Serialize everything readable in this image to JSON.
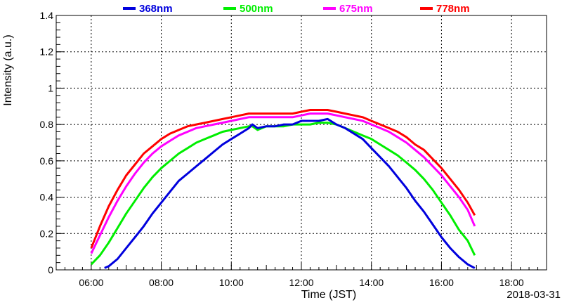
{
  "chart_data": {
    "type": "line",
    "title": "",
    "xlabel": "Time (JST)",
    "ylabel": "Intensity (a.u.)",
    "date_label": "2018-03-31",
    "xlim": [
      5.0,
      19.0
    ],
    "ylim": [
      0,
      1.4
    ],
    "x_ticks": [
      6,
      8,
      10,
      12,
      14,
      16,
      18
    ],
    "x_tick_labels": [
      "06:00",
      "08:00",
      "10:00",
      "12:00",
      "14:00",
      "16:00",
      "18:00"
    ],
    "y_ticks": [
      0,
      0.2,
      0.4,
      0.6,
      0.8,
      1,
      1.2,
      1.4
    ],
    "y_tick_labels": [
      "0",
      "0.2",
      "0.4",
      "0.6",
      "0.8",
      "1",
      "1.2",
      "1.4"
    ],
    "grid": true,
    "legend_position": "top",
    "series": [
      {
        "name": "368nm",
        "color": "#0000dd",
        "x": [
          6.38,
          6.5,
          6.75,
          7.0,
          7.25,
          7.5,
          7.75,
          8.0,
          8.25,
          8.5,
          8.75,
          9.0,
          9.25,
          9.5,
          9.75,
          10.0,
          10.25,
          10.5,
          10.6,
          10.75,
          11.0,
          11.25,
          11.5,
          11.75,
          12.0,
          12.25,
          12.5,
          12.75,
          13.0,
          13.25,
          13.5,
          13.75,
          14.0,
          14.25,
          14.5,
          14.75,
          15.0,
          15.25,
          15.5,
          15.75,
          16.0,
          16.25,
          16.5,
          16.75,
          16.95
        ],
        "values": [
          0.01,
          0.02,
          0.06,
          0.12,
          0.18,
          0.24,
          0.31,
          0.37,
          0.43,
          0.49,
          0.53,
          0.57,
          0.61,
          0.65,
          0.69,
          0.72,
          0.75,
          0.78,
          0.8,
          0.78,
          0.79,
          0.79,
          0.8,
          0.8,
          0.82,
          0.82,
          0.82,
          0.83,
          0.8,
          0.78,
          0.75,
          0.72,
          0.67,
          0.62,
          0.57,
          0.51,
          0.45,
          0.38,
          0.32,
          0.25,
          0.18,
          0.12,
          0.07,
          0.03,
          0.01
        ]
      },
      {
        "name": "500nm",
        "color": "#00ee00",
        "x": [
          6.0,
          6.25,
          6.5,
          6.75,
          7.0,
          7.25,
          7.5,
          7.75,
          8.0,
          8.25,
          8.5,
          8.75,
          9.0,
          9.25,
          9.5,
          9.75,
          10.0,
          10.25,
          10.5,
          10.6,
          10.75,
          11.0,
          11.25,
          11.5,
          11.75,
          12.0,
          12.25,
          12.5,
          12.75,
          13.0,
          13.25,
          13.5,
          13.75,
          14.0,
          14.25,
          14.5,
          14.75,
          15.0,
          15.25,
          15.5,
          15.75,
          16.0,
          16.25,
          16.5,
          16.75,
          16.95
        ],
        "values": [
          0.03,
          0.08,
          0.15,
          0.23,
          0.31,
          0.38,
          0.45,
          0.51,
          0.56,
          0.6,
          0.64,
          0.67,
          0.7,
          0.72,
          0.74,
          0.76,
          0.77,
          0.78,
          0.79,
          0.79,
          0.77,
          0.79,
          0.79,
          0.79,
          0.8,
          0.8,
          0.8,
          0.81,
          0.81,
          0.8,
          0.78,
          0.76,
          0.74,
          0.72,
          0.69,
          0.66,
          0.63,
          0.59,
          0.55,
          0.5,
          0.44,
          0.37,
          0.3,
          0.22,
          0.16,
          0.08
        ]
      },
      {
        "name": "675nm",
        "color": "#ff00ff",
        "x": [
          6.0,
          6.25,
          6.5,
          6.75,
          7.0,
          7.25,
          7.5,
          7.75,
          8.0,
          8.25,
          8.5,
          8.75,
          9.0,
          9.25,
          9.5,
          9.75,
          10.0,
          10.25,
          10.5,
          10.75,
          11.0,
          11.25,
          11.5,
          11.75,
          12.0,
          12.25,
          12.5,
          12.75,
          13.0,
          13.25,
          13.5,
          13.75,
          14.0,
          14.25,
          14.5,
          14.75,
          15.0,
          15.25,
          15.5,
          15.75,
          16.0,
          16.25,
          16.5,
          16.75,
          16.95
        ],
        "values": [
          0.09,
          0.19,
          0.29,
          0.38,
          0.46,
          0.53,
          0.59,
          0.64,
          0.68,
          0.71,
          0.74,
          0.76,
          0.78,
          0.79,
          0.8,
          0.81,
          0.82,
          0.83,
          0.84,
          0.84,
          0.84,
          0.84,
          0.84,
          0.84,
          0.85,
          0.86,
          0.86,
          0.86,
          0.85,
          0.84,
          0.83,
          0.82,
          0.8,
          0.78,
          0.76,
          0.73,
          0.7,
          0.66,
          0.62,
          0.57,
          0.52,
          0.46,
          0.4,
          0.33,
          0.24
        ]
      },
      {
        "name": "778nm",
        "color": "#ff0000",
        "x": [
          6.0,
          6.25,
          6.5,
          6.75,
          7.0,
          7.25,
          7.5,
          7.75,
          8.0,
          8.25,
          8.5,
          8.75,
          9.0,
          9.25,
          9.5,
          9.75,
          10.0,
          10.25,
          10.5,
          10.75,
          11.0,
          11.25,
          11.5,
          11.75,
          12.0,
          12.25,
          12.5,
          12.75,
          13.0,
          13.25,
          13.5,
          13.75,
          14.0,
          14.25,
          14.5,
          14.75,
          15.0,
          15.25,
          15.5,
          15.75,
          16.0,
          16.25,
          16.5,
          16.75,
          16.95
        ],
        "values": [
          0.12,
          0.24,
          0.35,
          0.44,
          0.52,
          0.58,
          0.64,
          0.68,
          0.72,
          0.75,
          0.77,
          0.79,
          0.8,
          0.81,
          0.82,
          0.83,
          0.84,
          0.85,
          0.86,
          0.86,
          0.86,
          0.86,
          0.86,
          0.86,
          0.87,
          0.88,
          0.88,
          0.88,
          0.87,
          0.86,
          0.85,
          0.84,
          0.82,
          0.8,
          0.78,
          0.76,
          0.73,
          0.69,
          0.66,
          0.61,
          0.56,
          0.5,
          0.44,
          0.37,
          0.3
        ]
      }
    ]
  }
}
